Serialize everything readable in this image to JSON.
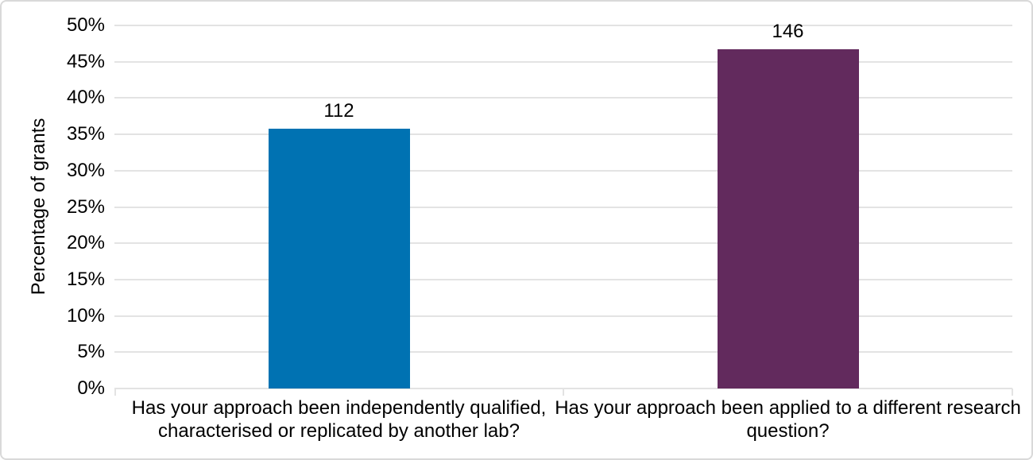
{
  "chart_data": {
    "type": "bar",
    "title": "",
    "xlabel": "",
    "ylabel": "Percentage of grants",
    "categories": [
      "Has your approach been independently qualified, characterised or replicated by another lab?",
      "Has your approach been applied to a different research question?"
    ],
    "values": [
      35.8,
      46.7
    ],
    "bar_labels": [
      "112",
      "146"
    ],
    "bar_colors": [
      "#0072B2",
      "#622A5D"
    ],
    "ylim": [
      0,
      50
    ],
    "ytick_step": 5,
    "y_ticks": [
      "0%",
      "5%",
      "10%",
      "15%",
      "20%",
      "25%",
      "30%",
      "35%",
      "40%",
      "45%",
      "50%"
    ],
    "grid": "horizontal-every-5-percent",
    "legend": "none"
  },
  "colors": {
    "gridline": "#e3e3e3",
    "frame_border": "#d9d9d9",
    "text": "#000000",
    "background": "#ffffff"
  }
}
